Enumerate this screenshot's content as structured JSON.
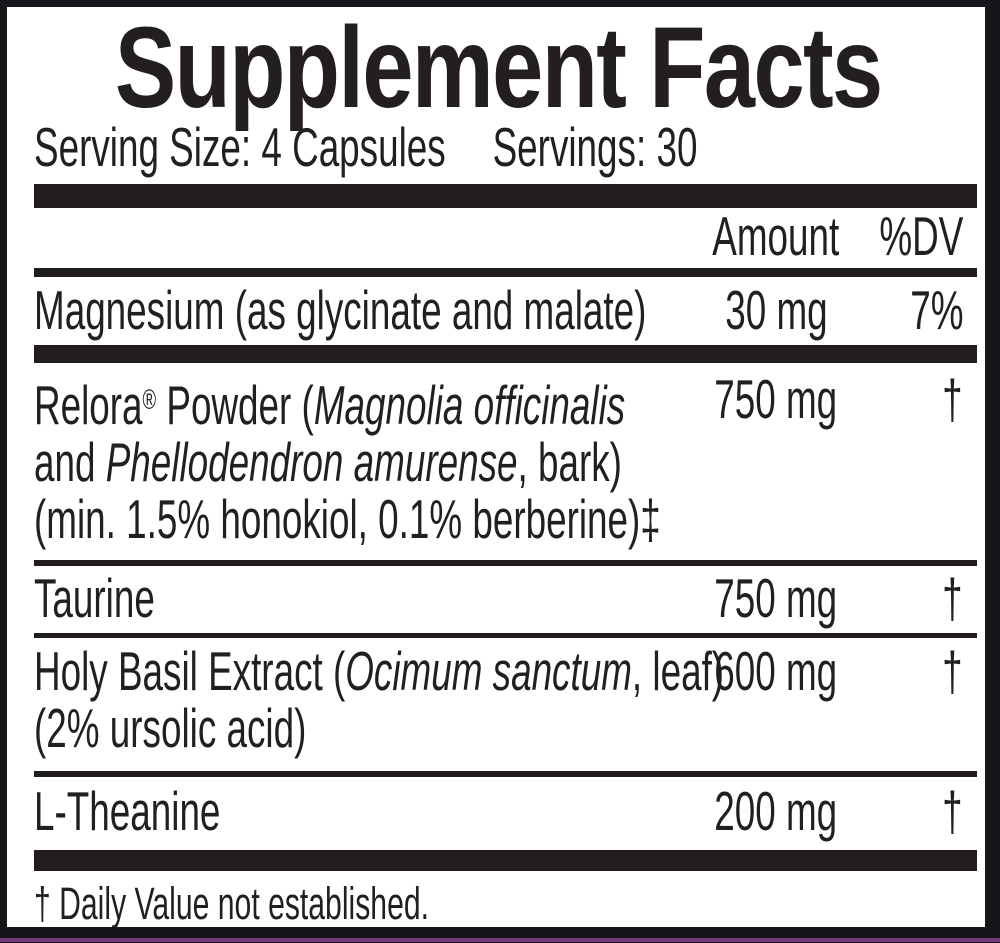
{
  "title": "Supplement Facts",
  "serving": {
    "size_label": "Serving Size: 4 Capsules",
    "servings_label": "Servings: 30"
  },
  "columns": {
    "amount": "Amount",
    "dv": "%DV"
  },
  "rows": [
    {
      "lines": [
        {
          "segments": [
            {
              "text": "Magnesium (as glycinate and malate)"
            }
          ]
        }
      ],
      "amount": "30 mg",
      "dv": "7%"
    },
    {
      "lines": [
        {
          "segments": [
            {
              "text": "Relora"
            },
            {
              "text": "®",
              "sup": true
            },
            {
              "text": " Powder ("
            },
            {
              "text": "Magnolia officinalis",
              "italic": true
            }
          ]
        },
        {
          "segments": [
            {
              "text": "and "
            },
            {
              "text": "Phellodendron amurense",
              "italic": true
            },
            {
              "text": ", bark)"
            }
          ]
        },
        {
          "segments": [
            {
              "text": "(min. 1.5% honokiol, 0.1% berberine)‡"
            }
          ]
        }
      ],
      "amount": "750 mg",
      "dv": "†"
    },
    {
      "lines": [
        {
          "segments": [
            {
              "text": "Taurine"
            }
          ]
        }
      ],
      "amount": "750 mg",
      "dv": "†"
    },
    {
      "lines": [
        {
          "segments": [
            {
              "text": "Holy Basil Extract ("
            },
            {
              "text": "Ocimum sanctum",
              "italic": true
            },
            {
              "text": ", leaf)"
            }
          ]
        },
        {
          "segments": [
            {
              "text": "(2% ursolic acid)"
            }
          ]
        }
      ],
      "amount": "600 mg",
      "dv": "†"
    },
    {
      "lines": [
        {
          "segments": [
            {
              "text": "L-Theanine"
            }
          ]
        }
      ],
      "amount": "200 mg",
      "dv": "†"
    }
  ],
  "footnote": "† Daily Value not established.",
  "colors": {
    "ink": "#231f20",
    "bar": "#201c1f",
    "border": "#17141a",
    "accent_purple": "#743c80",
    "background": "#ffffff"
  }
}
